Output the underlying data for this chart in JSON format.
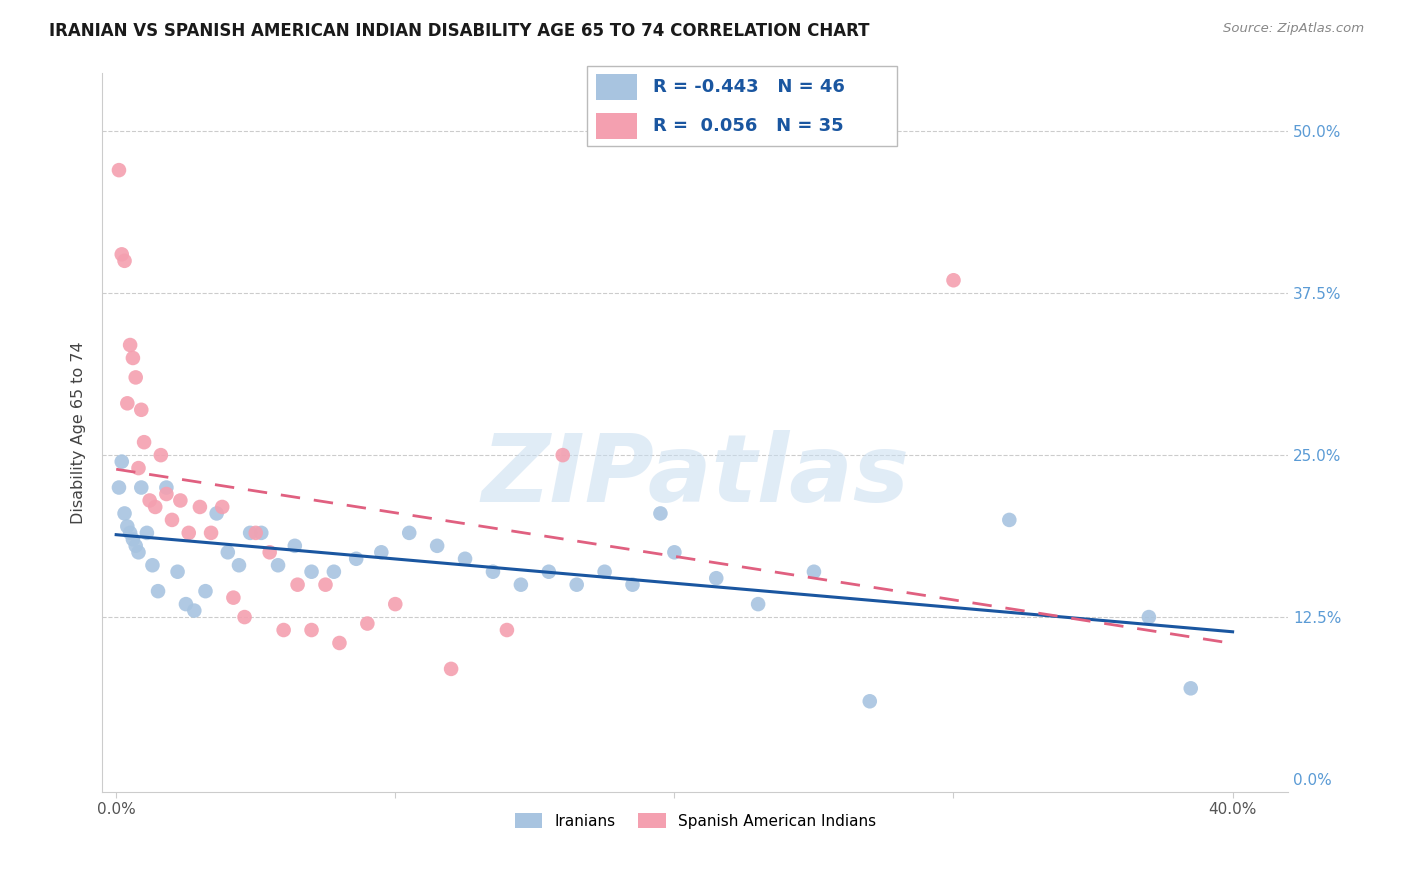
{
  "title": "IRANIAN VS SPANISH AMERICAN INDIAN DISABILITY AGE 65 TO 74 CORRELATION CHART",
  "source": "Source: ZipAtlas.com",
  "ylabel": "Disability Age 65 to 74",
  "x_tick_labels": [
    "0.0%",
    "",
    "",
    "",
    "40.0%"
  ],
  "x_ticks": [
    0.0,
    0.1,
    0.2,
    0.3,
    0.4
  ],
  "xlim": [
    -0.005,
    0.42
  ],
  "ylim": [
    -0.01,
    0.545
  ],
  "legend_R_iranian": "-0.443",
  "legend_N_iranian": "46",
  "legend_R_spanish": "0.056",
  "legend_N_spanish": "35",
  "iranian_color": "#a8c4e0",
  "spanish_color": "#f4a0b0",
  "iranian_line_color": "#1a56a0",
  "spanish_line_color": "#e06080",
  "watermark": "ZIPatlas",
  "iranian_x": [
    0.001,
    0.002,
    0.003,
    0.004,
    0.005,
    0.006,
    0.007,
    0.008,
    0.009,
    0.011,
    0.013,
    0.015,
    0.018,
    0.022,
    0.025,
    0.028,
    0.032,
    0.036,
    0.04,
    0.044,
    0.048,
    0.052,
    0.058,
    0.064,
    0.07,
    0.078,
    0.086,
    0.095,
    0.105,
    0.115,
    0.125,
    0.135,
    0.145,
    0.155,
    0.165,
    0.175,
    0.185,
    0.2,
    0.215,
    0.23,
    0.25,
    0.27,
    0.195,
    0.32,
    0.37,
    0.385
  ],
  "iranian_y": [
    0.225,
    0.245,
    0.205,
    0.195,
    0.19,
    0.185,
    0.18,
    0.175,
    0.225,
    0.19,
    0.165,
    0.145,
    0.225,
    0.16,
    0.135,
    0.13,
    0.145,
    0.205,
    0.175,
    0.165,
    0.19,
    0.19,
    0.165,
    0.18,
    0.16,
    0.16,
    0.17,
    0.175,
    0.19,
    0.18,
    0.17,
    0.16,
    0.15,
    0.16,
    0.15,
    0.16,
    0.15,
    0.175,
    0.155,
    0.135,
    0.16,
    0.06,
    0.205,
    0.2,
    0.125,
    0.07
  ],
  "spanish_x": [
    0.001,
    0.002,
    0.003,
    0.004,
    0.005,
    0.006,
    0.007,
    0.008,
    0.009,
    0.01,
    0.012,
    0.014,
    0.016,
    0.018,
    0.02,
    0.023,
    0.026,
    0.03,
    0.034,
    0.038,
    0.042,
    0.046,
    0.05,
    0.055,
    0.06,
    0.065,
    0.07,
    0.075,
    0.08,
    0.09,
    0.1,
    0.12,
    0.14,
    0.16,
    0.3
  ],
  "spanish_y": [
    0.47,
    0.405,
    0.4,
    0.29,
    0.335,
    0.325,
    0.31,
    0.24,
    0.285,
    0.26,
    0.215,
    0.21,
    0.25,
    0.22,
    0.2,
    0.215,
    0.19,
    0.21,
    0.19,
    0.21,
    0.14,
    0.125,
    0.19,
    0.175,
    0.115,
    0.15,
    0.115,
    0.15,
    0.105,
    0.12,
    0.135,
    0.085,
    0.115,
    0.25,
    0.385
  ]
}
